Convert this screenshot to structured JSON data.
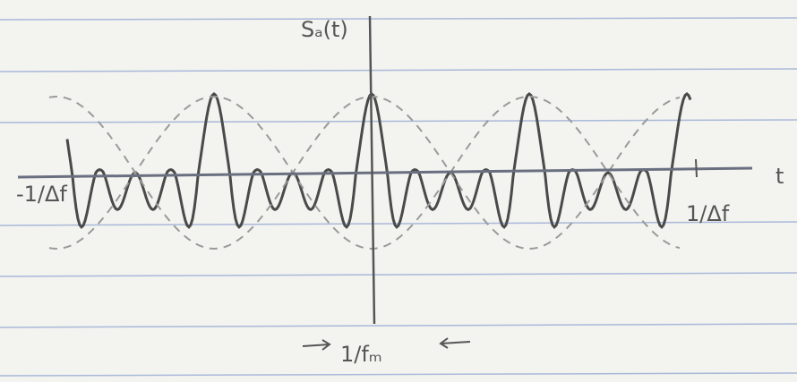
{
  "axis_labels": {
    "y": "Sₐ(t)",
    "x": "t",
    "left": "-1/Δf",
    "right": "1/Δf",
    "bottom": "1/fₘ"
  }
}
